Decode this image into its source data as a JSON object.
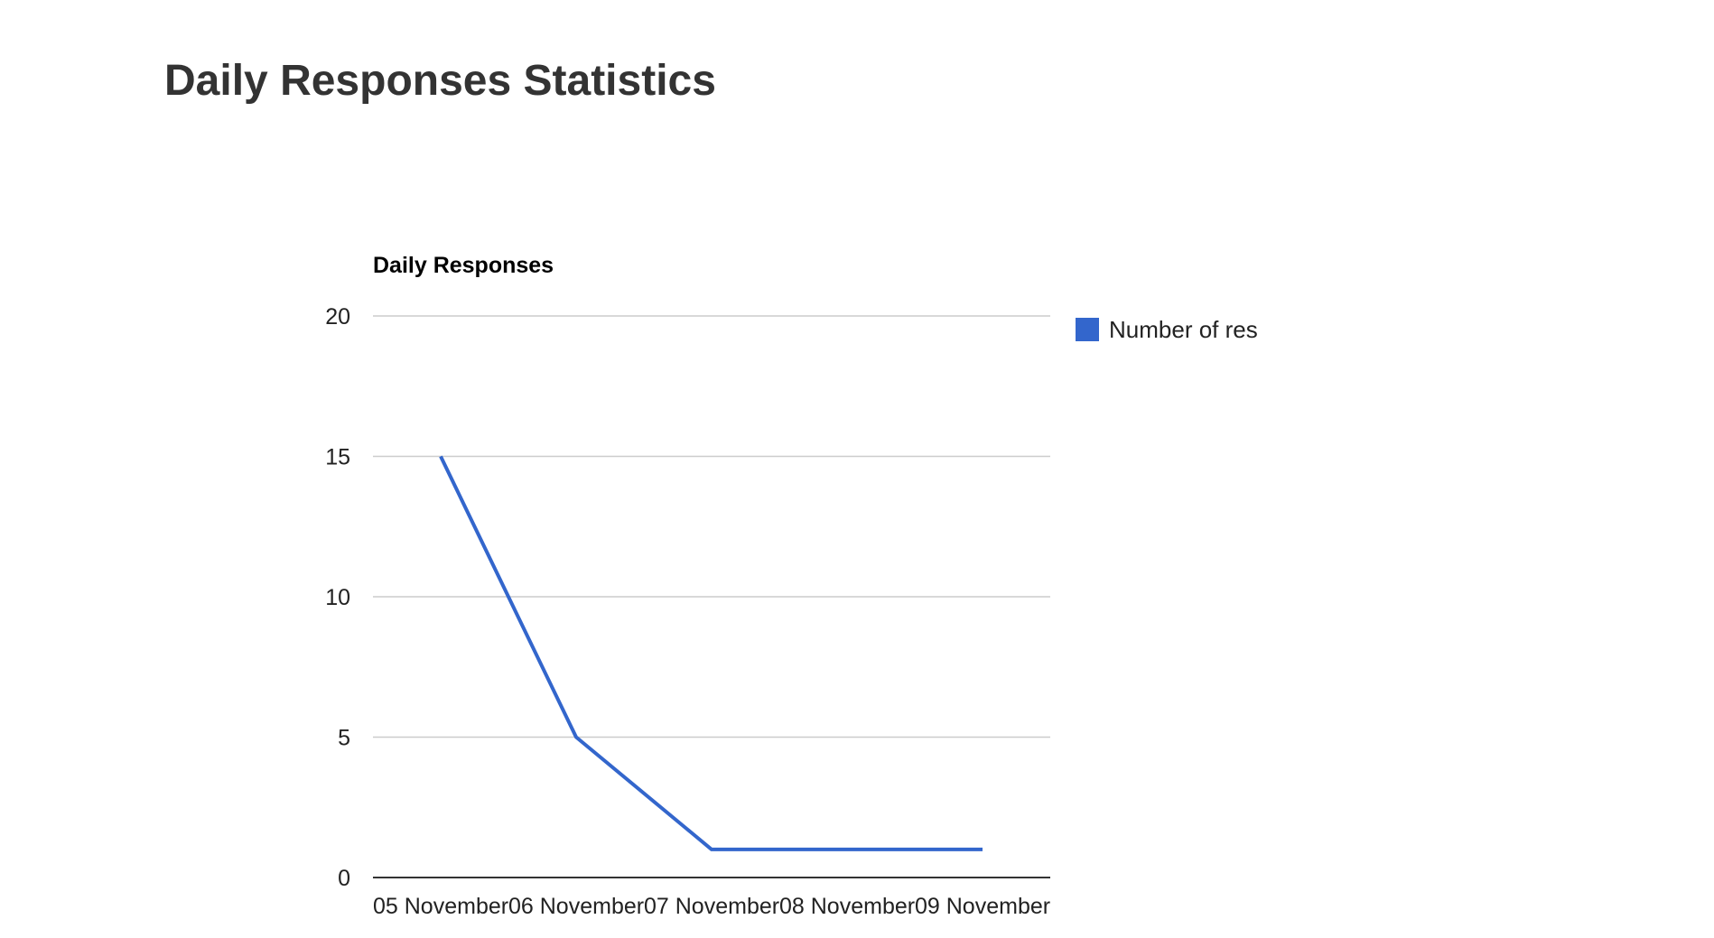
{
  "page": {
    "heading": "Daily Responses Statistics"
  },
  "colors": {
    "heading": "#333333",
    "series": "#3366cc",
    "gridline": "#cccccc",
    "axis": "#333333",
    "tick_label": "#222222"
  },
  "chart_data": {
    "type": "line",
    "title": "Daily Responses",
    "categories": [
      "05 November",
      "06 November",
      "07 November",
      "08 November",
      "09 November"
    ],
    "series": [
      {
        "name": "Number of responses",
        "legend_label": "Number of res",
        "values": [
          15,
          5,
          1,
          1,
          1
        ]
      }
    ],
    "y_ticks": [
      "0",
      "5",
      "10",
      "15",
      "20"
    ],
    "ylim": [
      0,
      20
    ],
    "grid": true,
    "legend_position": "right"
  }
}
